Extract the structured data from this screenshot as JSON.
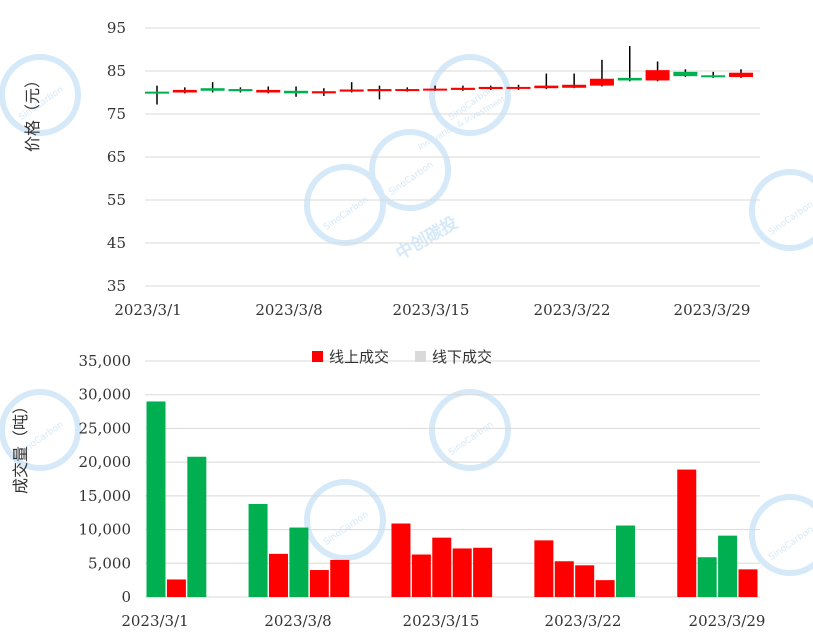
{
  "chart_data": [
    {
      "type": "candlestick",
      "ylabel": "价格（元）",
      "ylim": [
        35,
        95
      ],
      "yticks": [
        35,
        45,
        55,
        65,
        75,
        85,
        95
      ],
      "xticks": [
        "2023/3/1",
        "2023/3/8",
        "2023/3/15",
        "2023/3/22",
        "2023/3/29"
      ],
      "up_color": "#ff0000",
      "down_color": "#00b050",
      "candles": [
        {
          "date": "2023/3/1",
          "open": 80.2,
          "close": 79.8,
          "high": 81.6,
          "low": 77.2
        },
        {
          "date": "2023/3/2",
          "open": 80.0,
          "close": 80.6,
          "high": 81.2,
          "low": 79.8
        },
        {
          "date": "2023/3/3",
          "open": 81.0,
          "close": 80.4,
          "high": 82.4,
          "low": 80.0
        },
        {
          "date": "2023/3/6",
          "open": 80.8,
          "close": 80.3,
          "high": 81.2,
          "low": 80.0
        },
        {
          "date": "2023/3/7",
          "open": 80.0,
          "close": 80.6,
          "high": 81.4,
          "low": 79.8
        },
        {
          "date": "2023/3/8",
          "open": 80.4,
          "close": 79.8,
          "high": 81.4,
          "low": 79.0
        },
        {
          "date": "2023/3/9",
          "open": 79.8,
          "close": 80.3,
          "high": 81.0,
          "low": 79.2
        },
        {
          "date": "2023/3/10",
          "open": 80.2,
          "close": 80.7,
          "high": 82.4,
          "low": 80.0
        },
        {
          "date": "2023/3/13",
          "open": 80.3,
          "close": 80.8,
          "high": 81.6,
          "low": 78.4
        },
        {
          "date": "2023/3/14",
          "open": 80.4,
          "close": 80.8,
          "high": 81.2,
          "low": 80.2
        },
        {
          "date": "2023/3/15",
          "open": 80.5,
          "close": 80.9,
          "high": 81.6,
          "low": 80.4
        },
        {
          "date": "2023/3/16",
          "open": 80.6,
          "close": 81.1,
          "high": 81.6,
          "low": 80.4
        },
        {
          "date": "2023/3/17",
          "open": 80.8,
          "close": 81.3,
          "high": 81.6,
          "low": 80.6
        },
        {
          "date": "2023/3/20",
          "open": 80.9,
          "close": 81.3,
          "high": 81.8,
          "low": 80.6
        },
        {
          "date": "2023/3/21",
          "open": 81.0,
          "close": 81.6,
          "high": 84.4,
          "low": 80.8
        },
        {
          "date": "2023/3/22",
          "open": 81.1,
          "close": 81.8,
          "high": 84.4,
          "low": 81.0
        },
        {
          "date": "2023/3/23",
          "open": 81.6,
          "close": 83.2,
          "high": 87.6,
          "low": 81.4
        },
        {
          "date": "2023/3/24",
          "open": 83.4,
          "close": 82.8,
          "high": 90.8,
          "low": 82.6
        },
        {
          "date": "2023/3/27",
          "open": 82.8,
          "close": 85.2,
          "high": 87.2,
          "low": 82.6
        },
        {
          "date": "2023/3/28",
          "open": 84.8,
          "close": 83.8,
          "high": 85.4,
          "low": 83.6
        },
        {
          "date": "2023/3/29",
          "open": 84.0,
          "close": 83.6,
          "high": 84.8,
          "low": 83.4
        },
        {
          "date": "2023/3/30",
          "open": 83.6,
          "close": 84.6,
          "high": 85.4,
          "low": 83.4
        }
      ]
    },
    {
      "type": "bar",
      "ylabel": "成交量（吨）",
      "ylim": [
        0,
        35000
      ],
      "yticks": [
        "0",
        "5,000",
        "10,000",
        "15,000",
        "20,000",
        "25,000",
        "30,000",
        "35,000"
      ],
      "xticks": [
        "2023/3/1",
        "2023/3/8",
        "2023/3/15",
        "2023/3/22",
        "2023/3/29"
      ],
      "legend": [
        {
          "name": "线上成交",
          "color": "#ff0000"
        },
        {
          "name": "线下成交",
          "color": "#d9d9d9"
        }
      ],
      "legend_position": "top",
      "bars": [
        {
          "value": 29000,
          "color": "#00b050"
        },
        {
          "value": 2600,
          "color": "#ff0000"
        },
        {
          "value": 20800,
          "color": "#00b050"
        },
        {
          "value": 0,
          "color": "#00b050"
        },
        {
          "value": 0,
          "color": "#00b050"
        },
        {
          "value": 13800,
          "color": "#00b050"
        },
        {
          "value": 6400,
          "color": "#ff0000"
        },
        {
          "value": 10300,
          "color": "#00b050"
        },
        {
          "value": 4000,
          "color": "#ff0000"
        },
        {
          "value": 5500,
          "color": "#ff0000"
        },
        {
          "value": 0,
          "color": "#ff0000"
        },
        {
          "value": 0,
          "color": "#ff0000"
        },
        {
          "value": 10900,
          "color": "#ff0000"
        },
        {
          "value": 6300,
          "color": "#ff0000"
        },
        {
          "value": 8800,
          "color": "#ff0000"
        },
        {
          "value": 7200,
          "color": "#ff0000"
        },
        {
          "value": 7300,
          "color": "#ff0000"
        },
        {
          "value": 0,
          "color": "#ff0000"
        },
        {
          "value": 0,
          "color": "#ff0000"
        },
        {
          "value": 8400,
          "color": "#ff0000"
        },
        {
          "value": 5300,
          "color": "#ff0000"
        },
        {
          "value": 4700,
          "color": "#ff0000"
        },
        {
          "value": 2500,
          "color": "#ff0000"
        },
        {
          "value": 10600,
          "color": "#00b050"
        },
        {
          "value": 0,
          "color": "#00b050"
        },
        {
          "value": 0,
          "color": "#00b050"
        },
        {
          "value": 18900,
          "color": "#ff0000"
        },
        {
          "value": 5900,
          "color": "#00b050"
        },
        {
          "value": 9100,
          "color": "#00b050"
        },
        {
          "value": 4100,
          "color": "#ff0000"
        }
      ]
    }
  ],
  "watermark": {
    "en_line1": "SinoCarbon",
    "en_line2": "Innovation & Investment",
    "cn": "中创碳投",
    "color": "#d6e9f8"
  }
}
